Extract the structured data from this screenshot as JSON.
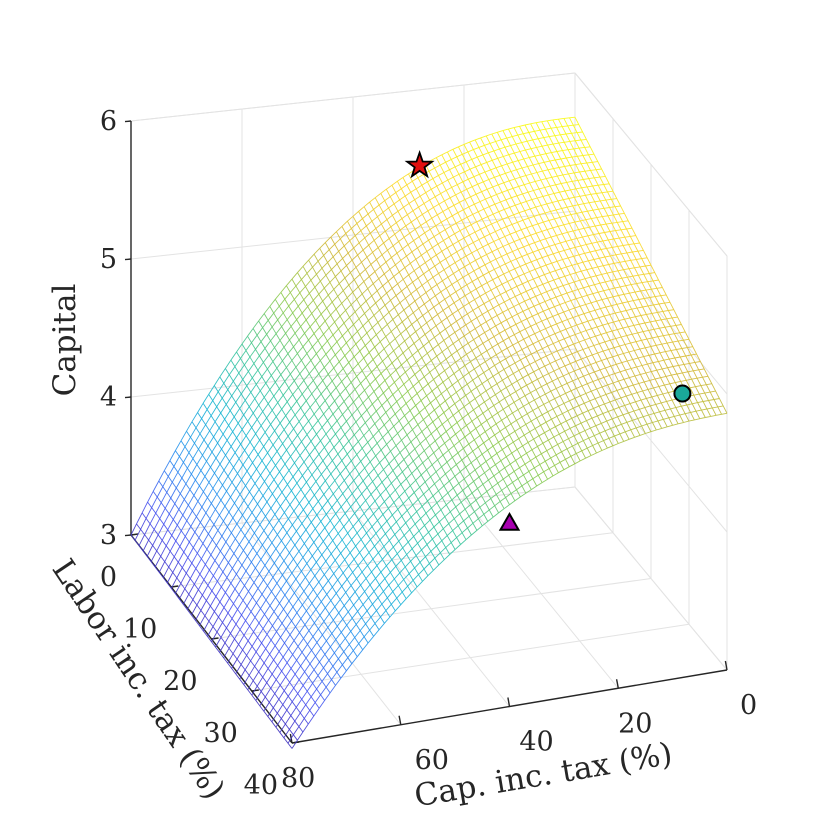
{
  "chart_data": {
    "type": "surface",
    "title": "",
    "xlabel": "Cap. inc. tax (%)",
    "ylabel": "Labor inc. tax (%)",
    "zlabel": "Capital",
    "xlim": [
      0,
      80
    ],
    "ylim": [
      0,
      40
    ],
    "zlim": [
      3,
      6
    ],
    "x_ticks": [
      0,
      20,
      40,
      60,
      80
    ],
    "y_ticks": [
      0,
      10,
      20,
      30,
      40
    ],
    "z_ticks": [
      3,
      4,
      5,
      6
    ],
    "x_tick_labels": [
      "0",
      "20",
      "40",
      "60",
      "80"
    ],
    "y_tick_labels": [
      "0",
      "10",
      "20",
      "30",
      "40"
    ],
    "z_tick_labels": [
      "3",
      "4",
      "5",
      "6"
    ],
    "colormap": [
      "#3e26a8",
      "#4a52f0",
      "#2a8ff0",
      "#19b5d5",
      "#3cc69a",
      "#8ccb4f",
      "#d2b93a",
      "#fbd82c",
      "#f9fb15"
    ],
    "surface_samples": {
      "x": [
        0,
        20,
        40,
        60,
        80
      ],
      "y": [
        0,
        10,
        20,
        30,
        40
      ],
      "z": [
        [
          5.68,
          5.58,
          5.33,
          4.72,
          3.0
        ],
        [
          5.48,
          5.41,
          5.13,
          4.52,
          2.96
        ],
        [
          5.28,
          5.21,
          4.95,
          4.32,
          2.92
        ],
        [
          5.06,
          5.0,
          4.75,
          4.12,
          2.88
        ],
        [
          4.86,
          4.8,
          4.55,
          3.95,
          2.85
        ]
      ]
    },
    "markers": [
      {
        "name": "star",
        "x": 28,
        "y": 0,
        "z": 5.45,
        "color": "#e01010"
      },
      {
        "name": "circle",
        "x": 4,
        "y": 34,
        "z": 4.83,
        "color": "#1aa89a"
      },
      {
        "name": "triangle",
        "x": 40,
        "y": 40,
        "z": 4.33,
        "color": "#a800b0"
      }
    ]
  }
}
